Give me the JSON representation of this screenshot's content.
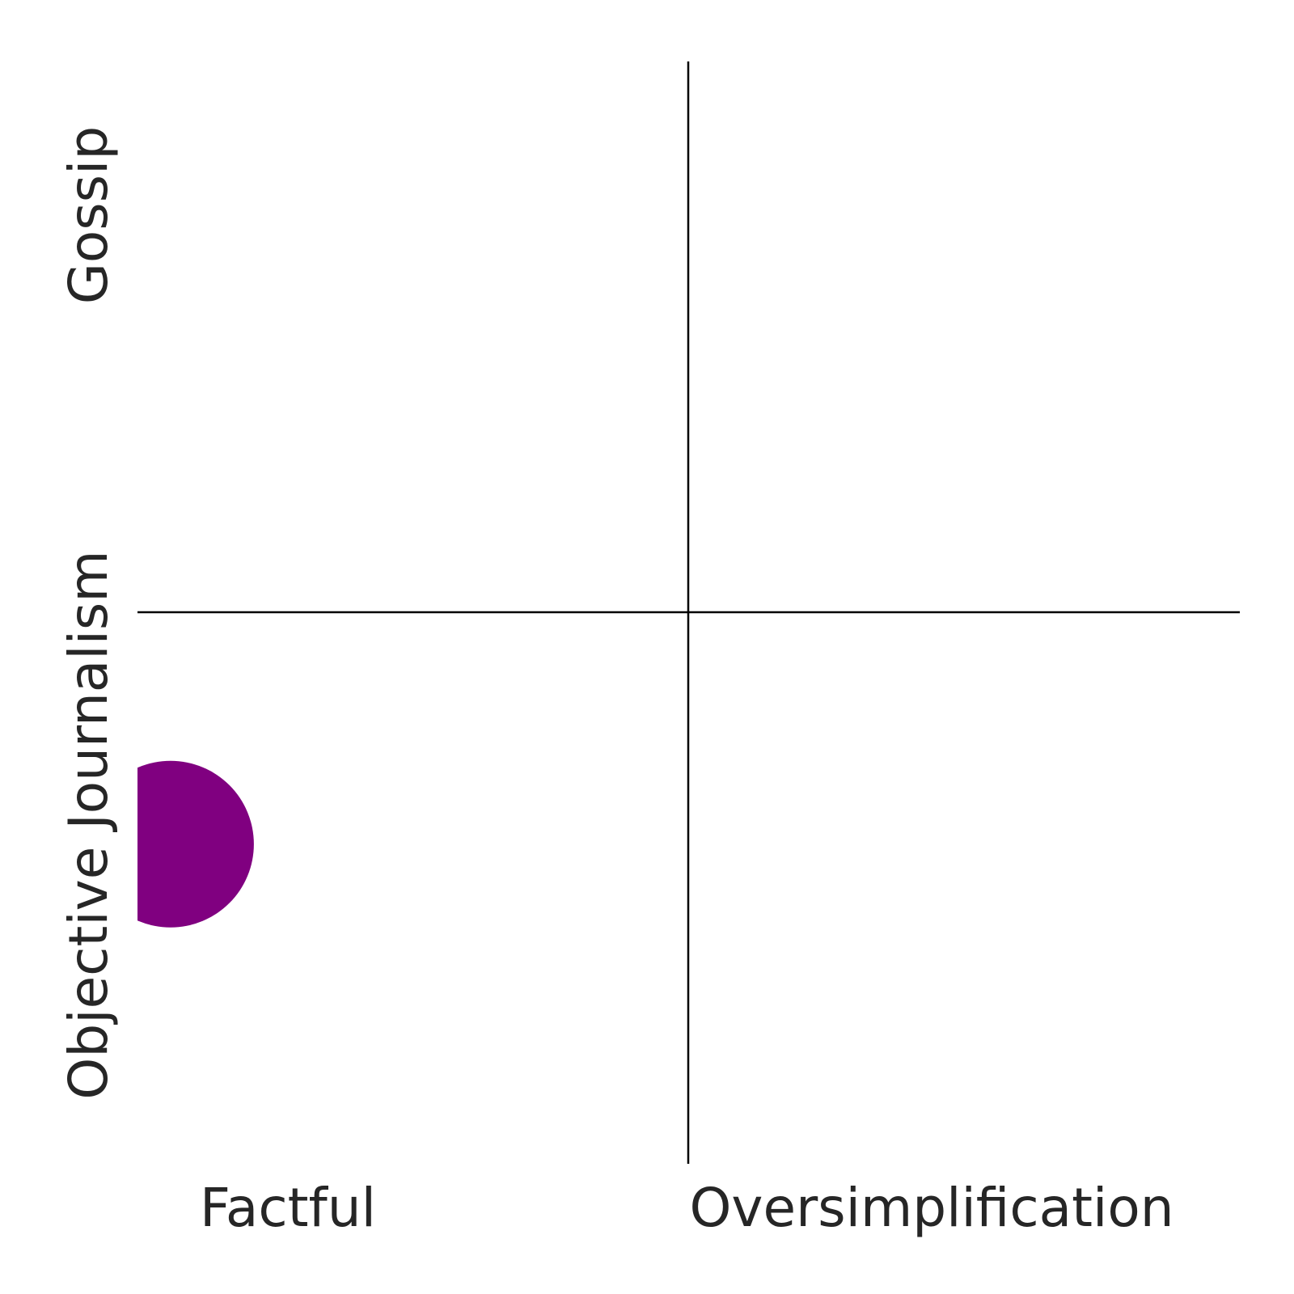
{
  "chart_data": {
    "type": "scatter",
    "title": "",
    "x_axis": {
      "left_label": "Factful",
      "right_label": "Oversimplification",
      "range": [
        -1,
        1
      ]
    },
    "y_axis": {
      "bottom_label": "Objective Journalism",
      "top_label": "Gossip",
      "range": [
        -1,
        1
      ]
    },
    "grid": false,
    "points": [
      {
        "x": -0.94,
        "y": -0.42,
        "color": "#800080"
      }
    ]
  }
}
